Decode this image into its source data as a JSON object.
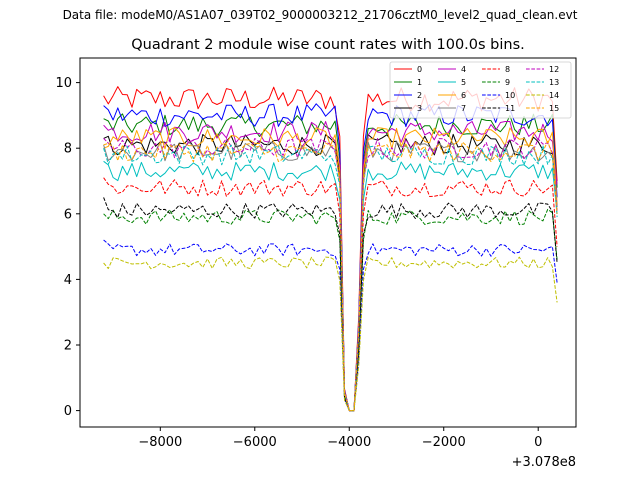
{
  "suptitle": "Data file: modeM0/AS1A07_039T02_9000003212_21706cztM0_level2_quad_clean.evt",
  "chart_data": {
    "type": "line",
    "title": "Quadrant 2 module wise count rates with 100.0s bins.",
    "xlabel": "",
    "ylabel": "",
    "x_offset_label": "+3.078e8",
    "xlim": [
      -9700,
      800
    ],
    "ylim": [
      -0.5,
      10.75
    ],
    "xticks": [
      -8000,
      -6000,
      -4000,
      -2000,
      0
    ],
    "xtick_labels": [
      "−8000",
      "−6000",
      "−4000",
      "−2000",
      "0"
    ],
    "yticks": [
      0,
      2,
      4,
      6,
      8,
      10
    ],
    "ytick_labels": [
      "0",
      "2",
      "4",
      "6",
      "8",
      "10"
    ],
    "grid": false,
    "legend_position": "top-right",
    "legend_columns": 4,
    "x_start": -9200,
    "x_step": 100,
    "gap_points": {
      "x": [
        -4200,
        -4100,
        -4000,
        -3900,
        -3800,
        -3700
      ],
      "factors": [
        0.88,
        0.07,
        0.0,
        0.0,
        0.3,
        0.88
      ]
    },
    "series": [
      {
        "name": "0",
        "color": "#ff0000",
        "dash": "solid",
        "level": 9.5,
        "start": 9.6,
        "end": 7.0
      },
      {
        "name": "1",
        "color": "#008000",
        "dash": "solid",
        "level": 8.7,
        "start": 8.9,
        "end": 6.8
      },
      {
        "name": "2",
        "color": "#0000ff",
        "dash": "solid",
        "level": 9.0,
        "start": 9.3,
        "end": 6.5
      },
      {
        "name": "3",
        "color": "#000000",
        "dash": "solid",
        "level": 8.1,
        "start": 8.3,
        "end": 6.2
      },
      {
        "name": "4",
        "color": "#bf00bf",
        "dash": "solid",
        "level": 8.5,
        "start": 8.7,
        "end": 6.9
      },
      {
        "name": "5",
        "color": "#00bfbf",
        "dash": "solid",
        "level": 7.3,
        "start": 7.6,
        "end": 6.0
      },
      {
        "name": "6",
        "color": "#ffa500",
        "dash": "solid",
        "level": 8.3,
        "start": 8.0,
        "end": 6.3
      },
      {
        "name": "7",
        "color": "#808080",
        "dash": "solid",
        "level": 7.9,
        "start": 8.1,
        "end": 6.2
      },
      {
        "name": "8",
        "color": "#ff0000",
        "dash": "dashed",
        "level": 6.8,
        "start": 7.1,
        "end": 5.0
      },
      {
        "name": "9",
        "color": "#008000",
        "dash": "dashed",
        "level": 5.9,
        "start": 6.0,
        "end": 4.6
      },
      {
        "name": "10",
        "color": "#0000ff",
        "dash": "dashed",
        "level": 4.9,
        "start": 5.2,
        "end": 3.9
      },
      {
        "name": "11",
        "color": "#000000",
        "dash": "dashed",
        "level": 6.1,
        "start": 6.5,
        "end": 4.5
      },
      {
        "name": "12",
        "color": "#bf00bf",
        "dash": "dashed",
        "level": 8.0,
        "start": 8.3,
        "end": 6.1
      },
      {
        "name": "13",
        "color": "#00bfbf",
        "dash": "dashed",
        "level": 7.8,
        "start": 8.0,
        "end": 5.9
      },
      {
        "name": "14",
        "color": "#bfbf00",
        "dash": "dashed",
        "level": 4.5,
        "start": 4.5,
        "end": 3.3
      },
      {
        "name": "15",
        "color": "#ffa500",
        "dash": "dashed",
        "level": 7.9,
        "start": 8.1,
        "end": 6.0
      }
    ]
  }
}
